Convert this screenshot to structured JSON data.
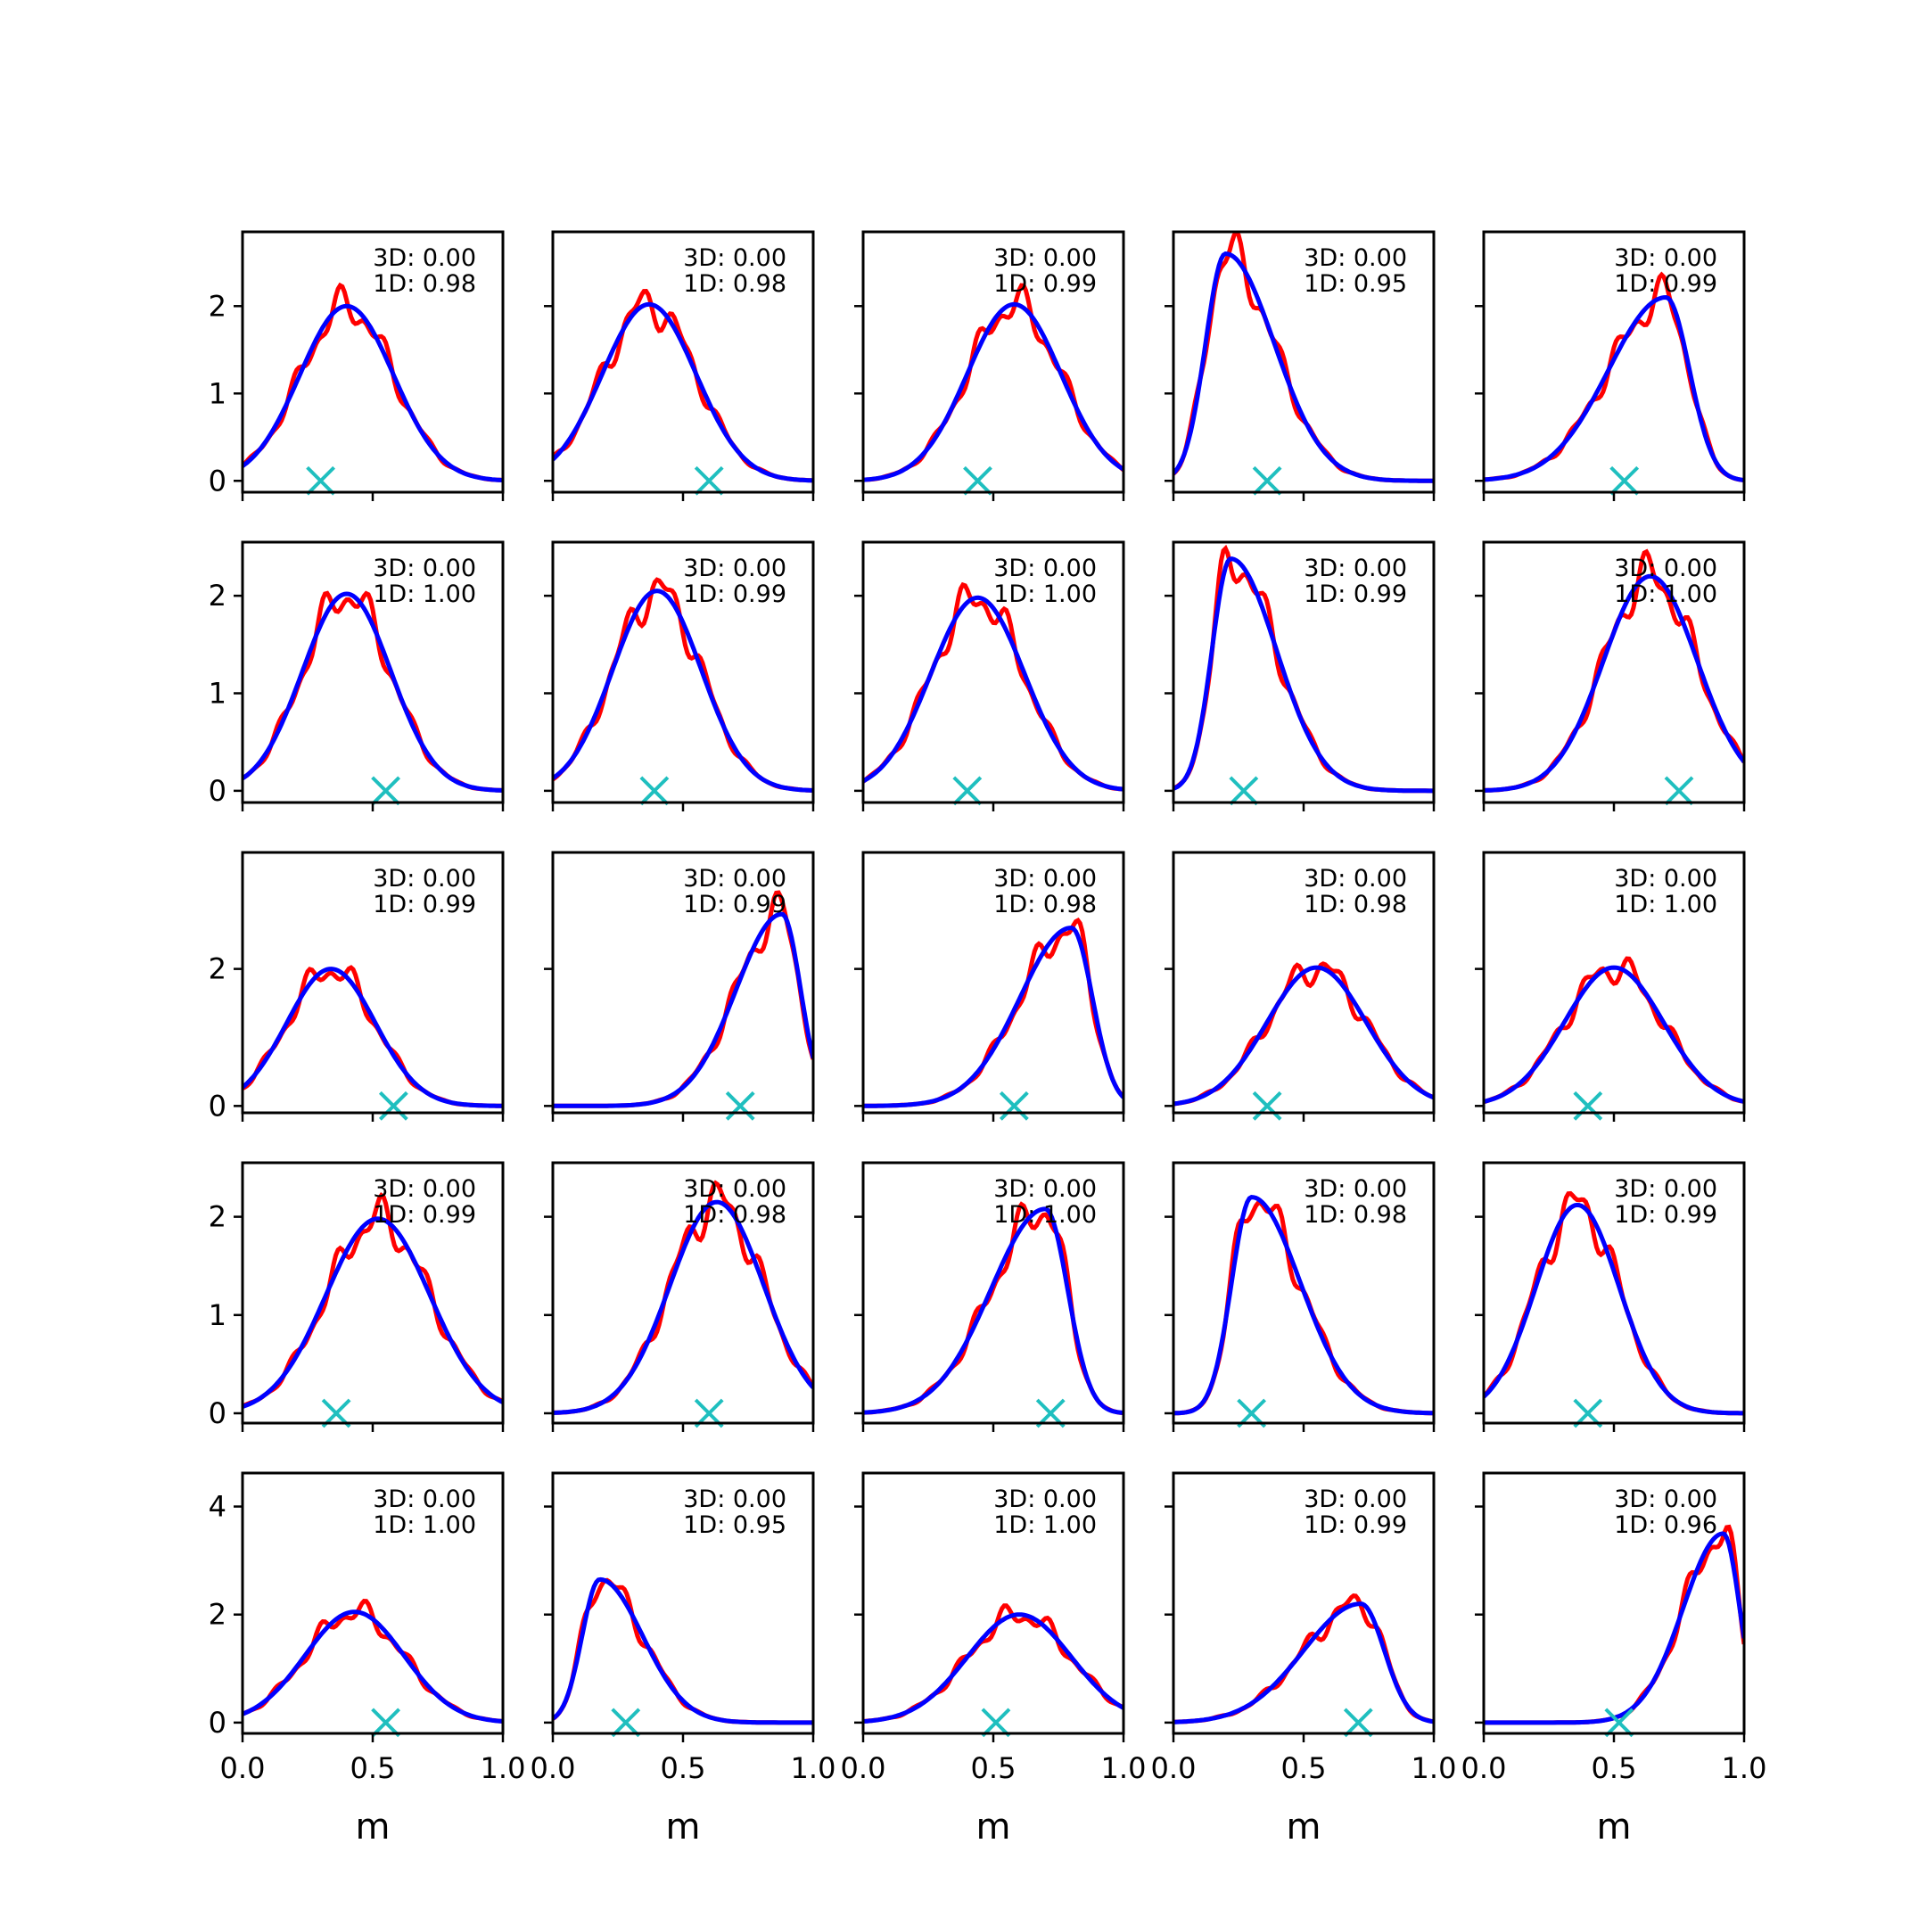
{
  "chart_data": {
    "type": "line",
    "grid": false,
    "rows": 5,
    "cols": 5,
    "colors": {
      "red_series": "#ff0000",
      "blue_series": "#0000ff",
      "marker": "#1fbfbf",
      "axes": "#000000"
    },
    "xlabel": "m",
    "xlim": [
      0.0,
      1.0
    ],
    "xticks": [
      0.0,
      0.5,
      1.0
    ],
    "xtick_labels": [
      "0.0",
      "0.5",
      "1.0"
    ],
    "row_axes": [
      {
        "ylim": [
          -0.13,
          2.85
        ],
        "yticks": [
          0,
          1,
          2
        ],
        "ytick_labels": [
          "0",
          "1",
          "2"
        ]
      },
      {
        "ylim": [
          -0.12,
          2.55
        ],
        "yticks": [
          0,
          1,
          2
        ],
        "ytick_labels": [
          "0",
          "1",
          "2"
        ]
      },
      {
        "ylim": [
          -0.1,
          3.7
        ],
        "yticks": [
          0,
          2
        ],
        "ytick_labels": [
          "0",
          "2"
        ]
      },
      {
        "ylim": [
          -0.1,
          2.55
        ],
        "yticks": [
          0,
          1,
          2
        ],
        "ytick_labels": [
          "0",
          "1",
          "2"
        ]
      },
      {
        "ylim": [
          -0.2,
          4.62
        ],
        "yticks": [
          0,
          2,
          4
        ],
        "ytick_labels": [
          "0",
          "2",
          "4"
        ]
      }
    ],
    "panels": [
      {
        "row": 0,
        "col": 0,
        "line1": "3D: 0.00",
        "line2": "1D: 0.98",
        "marker_x": 0.3,
        "shape": "mid",
        "mu": 0.4,
        "sd": 0.18,
        "peak": 2.0
      },
      {
        "row": 0,
        "col": 1,
        "line1": "3D: 0.00",
        "line2": "1D: 0.98",
        "marker_x": 0.6,
        "shape": "mid",
        "mu": 0.37,
        "sd": 0.18,
        "peak": 2.02
      },
      {
        "row": 0,
        "col": 2,
        "line1": "3D: 0.00",
        "line2": "1D: 0.99",
        "marker_x": 0.44,
        "shape": "mid",
        "mu": 0.58,
        "sd": 0.18,
        "peak": 2.02
      },
      {
        "row": 0,
        "col": 3,
        "line1": "3D: 0.00",
        "line2": "1D: 0.95",
        "marker_x": 0.36,
        "shape": "left",
        "mu": 0.2,
        "sd": 0.17,
        "peak": 2.6
      },
      {
        "row": 0,
        "col": 4,
        "line1": "3D: 0.00",
        "line2": "1D: 0.99",
        "marker_x": 0.54,
        "shape": "right",
        "mu": 0.7,
        "sd": 0.2,
        "peak": 2.1
      },
      {
        "row": 1,
        "col": 0,
        "line1": "3D: 0.00",
        "line2": "1D: 1.00",
        "marker_x": 0.55,
        "shape": "mid",
        "mu": 0.4,
        "sd": 0.17,
        "peak": 2.02
      },
      {
        "row": 1,
        "col": 1,
        "line1": "3D: 0.00",
        "line2": "1D: 0.99",
        "marker_x": 0.39,
        "shape": "mid",
        "mu": 0.4,
        "sd": 0.17,
        "peak": 2.05
      },
      {
        "row": 1,
        "col": 2,
        "line1": "3D: 0.00",
        "line2": "1D: 1.00",
        "marker_x": 0.4,
        "shape": "mid",
        "mu": 0.44,
        "sd": 0.18,
        "peak": 1.98
      },
      {
        "row": 1,
        "col": 3,
        "line1": "3D: 0.00",
        "line2": "1D: 0.99",
        "marker_x": 0.27,
        "shape": "left",
        "mu": 0.22,
        "sd": 0.16,
        "peak": 2.38
      },
      {
        "row": 1,
        "col": 4,
        "line1": "3D: 0.00",
        "line2": "1D: 1.00",
        "marker_x": 0.75,
        "shape": "mid",
        "mu": 0.64,
        "sd": 0.18,
        "peak": 2.2
      },
      {
        "row": 2,
        "col": 0,
        "line1": "3D: 0.00",
        "line2": "1D: 0.99",
        "marker_x": 0.58,
        "shape": "mid",
        "mu": 0.34,
        "sd": 0.17,
        "peak": 2.0
      },
      {
        "row": 2,
        "col": 1,
        "line1": "3D: 0.00",
        "line2": "1D: 0.99",
        "marker_x": 0.72,
        "shape": "right",
        "mu": 0.88,
        "sd": 0.16,
        "peak": 2.8
      },
      {
        "row": 2,
        "col": 2,
        "line1": "3D: 0.00",
        "line2": "1D: 0.98",
        "marker_x": 0.58,
        "shape": "right",
        "mu": 0.8,
        "sd": 0.18,
        "peak": 2.6
      },
      {
        "row": 2,
        "col": 3,
        "line1": "3D: 0.00",
        "line2": "1D: 0.98",
        "marker_x": 0.36,
        "shape": "mid",
        "mu": 0.55,
        "sd": 0.19,
        "peak": 2.02
      },
      {
        "row": 2,
        "col": 4,
        "line1": "3D: 0.00",
        "line2": "1D: 1.00",
        "marker_x": 0.4,
        "shape": "mid",
        "mu": 0.5,
        "sd": 0.19,
        "peak": 2.02
      },
      {
        "row": 3,
        "col": 0,
        "line1": "3D: 0.00",
        "line2": "1D: 0.99",
        "marker_x": 0.36,
        "shape": "mid",
        "mu": 0.52,
        "sd": 0.2,
        "peak": 1.98
      },
      {
        "row": 3,
        "col": 1,
        "line1": "3D: 0.00",
        "line2": "1D: 0.98",
        "marker_x": 0.6,
        "shape": "mid",
        "mu": 0.63,
        "sd": 0.18,
        "peak": 2.15
      },
      {
        "row": 3,
        "col": 2,
        "line1": "3D: 0.00",
        "line2": "1D: 1.00",
        "marker_x": 0.72,
        "shape": "right",
        "mu": 0.7,
        "sd": 0.19,
        "peak": 2.08
      },
      {
        "row": 3,
        "col": 3,
        "line1": "3D: 0.00",
        "line2": "1D: 0.98",
        "marker_x": 0.3,
        "shape": "left",
        "mu": 0.3,
        "sd": 0.17,
        "peak": 2.2
      },
      {
        "row": 3,
        "col": 4,
        "line1": "3D: 0.00",
        "line2": "1D: 0.99",
        "marker_x": 0.4,
        "shape": "mid",
        "mu": 0.36,
        "sd": 0.16,
        "peak": 2.12
      },
      {
        "row": 4,
        "col": 0,
        "line1": "3D: 0.00",
        "line2": "1D: 1.00",
        "marker_x": 0.55,
        "shape": "mid",
        "mu": 0.43,
        "sd": 0.19,
        "peak": 2.05
      },
      {
        "row": 4,
        "col": 1,
        "line1": "3D: 0.00",
        "line2": "1D: 0.95",
        "marker_x": 0.28,
        "shape": "left",
        "mu": 0.18,
        "sd": 0.15,
        "peak": 2.65
      },
      {
        "row": 4,
        "col": 2,
        "line1": "3D: 0.00",
        "line2": "1D: 1.00",
        "marker_x": 0.51,
        "shape": "mid",
        "mu": 0.6,
        "sd": 0.2,
        "peak": 2.0
      },
      {
        "row": 4,
        "col": 3,
        "line1": "3D: 0.00",
        "line2": "1D: 0.99",
        "marker_x": 0.71,
        "shape": "right",
        "mu": 0.72,
        "sd": 0.2,
        "peak": 2.2
      },
      {
        "row": 4,
        "col": 4,
        "line1": "3D: 0.00",
        "line2": "1D: 0.96",
        "marker_x": 0.52,
        "shape": "right",
        "mu": 0.92,
        "sd": 0.14,
        "peak": 3.5
      }
    ]
  }
}
